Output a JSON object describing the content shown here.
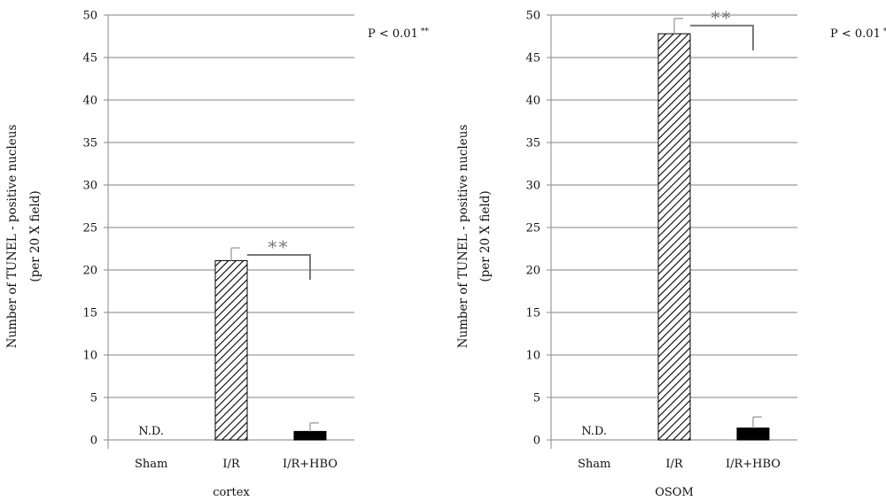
{
  "chart_data": [
    {
      "type": "bar",
      "xlabel": "cortex",
      "ylabel_lines": [
        "Number of TUNEL - positive nucleus",
        "(per 20 X field)"
      ],
      "ylim": [
        0,
        50
      ],
      "yticks": [
        "0",
        "5",
        "10",
        "15",
        "20",
        "25",
        "30",
        "35",
        "40",
        "45",
        "50"
      ],
      "grid": true,
      "categories": [
        "Sham",
        "I/R",
        "I/R+HBO"
      ],
      "values": [
        0,
        21.1,
        1.0
      ],
      "errors": [
        0,
        1.5,
        1.0
      ],
      "bar_styles": [
        "none",
        "hatched",
        "solid"
      ],
      "bar_labels": [
        "N.D.",
        "",
        ""
      ],
      "significance": {
        "from": "I/R",
        "to": "I/R+HBO",
        "label": "**"
      },
      "annotation": {
        "text": "P < 0.01",
        "marker": "**"
      }
    },
    {
      "type": "bar",
      "xlabel": "OSOM",
      "ylabel_lines": [
        "Number of TUNEL - positive nucleus",
        "(per 20 X field)"
      ],
      "ylim": [
        0,
        50
      ],
      "yticks": [
        "0",
        "5",
        "10",
        "15",
        "20",
        "25",
        "30",
        "35",
        "40",
        "45",
        "50"
      ],
      "grid": true,
      "categories": [
        "Sham",
        "I/R",
        "I/R+HBO"
      ],
      "values": [
        0,
        47.8,
        1.4
      ],
      "errors": [
        0,
        1.8,
        1.3
      ],
      "bar_styles": [
        "none",
        "hatched",
        "solid"
      ],
      "bar_labels": [
        "N.D.",
        "",
        ""
      ],
      "significance": {
        "from": "I/R",
        "to": "I/R+HBO",
        "label": "**"
      },
      "annotation": {
        "text": "P < 0.01",
        "marker": "**"
      }
    }
  ],
  "colors": {
    "grid": "#9a9a9a",
    "bar_solid": "#000000",
    "hatch": "#000000",
    "significance": "#777777"
  }
}
